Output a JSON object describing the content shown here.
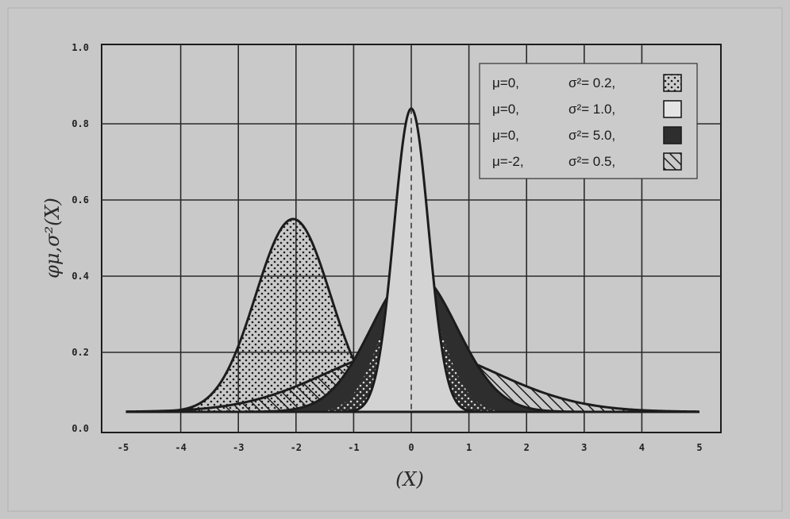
{
  "chart_data": {
    "type": "area",
    "xlabel": "(X)",
    "ylabel": "φμ,σ²(X)",
    "xlim": [
      -5,
      5
    ],
    "ylim": [
      0.0,
      1.0
    ],
    "x_ticks": [
      "-5",
      "-4",
      "-3",
      "-2",
      "-1",
      "0",
      "1",
      "2",
      "3",
      "4",
      "5"
    ],
    "y_ticks": [
      "0.0",
      "0.2",
      "0.4",
      "0.6",
      "0.8",
      "1.0"
    ],
    "grid": true,
    "legend_position": "top-right",
    "series": [
      {
        "label": [
          "μ=0,",
          "σ²= 0.2,"
        ],
        "mu": 0,
        "sigma2": 0.2,
        "peak": 0.84,
        "fill": "dotted"
      },
      {
        "label": [
          "μ=0,",
          "σ²= 1.0,"
        ],
        "mu": 0,
        "sigma2": 1.0,
        "peak": 0.41,
        "fill": "white"
      },
      {
        "label": [
          "μ=0,",
          "σ²= 5.0,"
        ],
        "mu": 0,
        "sigma2": 5.0,
        "peak": 0.21,
        "fill": "dark"
      },
      {
        "label": [
          "μ=-2,",
          "σ²= 0.5,"
        ],
        "mu": -2,
        "sigma2": 0.5,
        "peak": 0.55,
        "fill": "hatched"
      }
    ],
    "colors": {
      "background": "#c6c6c6",
      "ink": "#1c1c1c",
      "dark_fill": "#2e2e2e"
    }
  }
}
